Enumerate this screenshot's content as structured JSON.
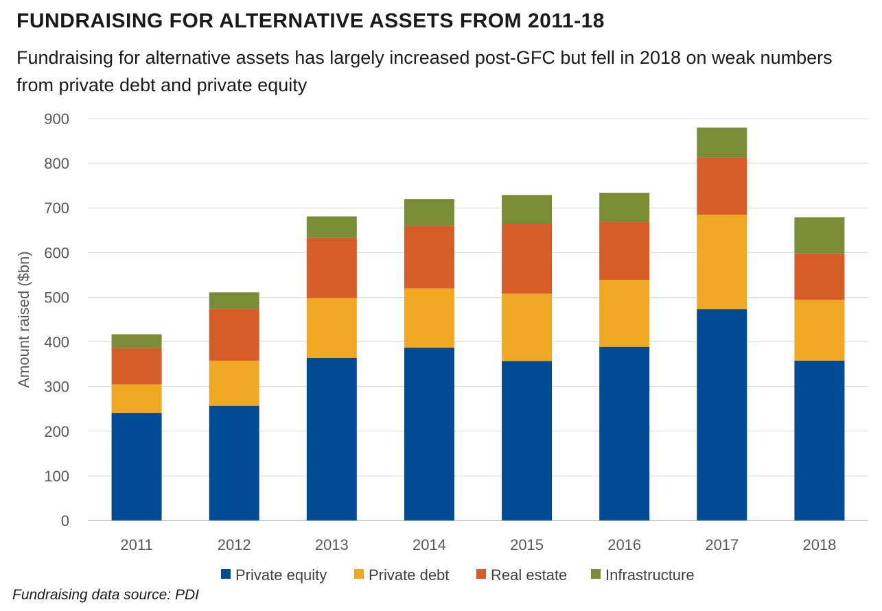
{
  "title": "FUNDRAISING FOR ALTERNATIVE ASSETS FROM 2011-18",
  "subtitle": "Fundraising for alternative assets has largely increased post-GFC but fell in 2018 on weak numbers from private debt and private equity",
  "source": "Fundraising data source: PDI",
  "chart_data": {
    "type": "bar",
    "stacked": true,
    "categories": [
      "2011",
      "2012",
      "2013",
      "2014",
      "2015",
      "2016",
      "2017",
      "2018"
    ],
    "series": [
      {
        "name": "Private equity",
        "color": "#004B93",
        "values": [
          241,
          257,
          364,
          387,
          357,
          389,
          473,
          358
        ]
      },
      {
        "name": "Private debt",
        "color": "#F0A823",
        "values": [
          64,
          101,
          134,
          133,
          151,
          150,
          212,
          136
        ]
      },
      {
        "name": "Real estate",
        "color": "#D65C28",
        "values": [
          81,
          116,
          135,
          140,
          157,
          130,
          128,
          104
        ]
      },
      {
        "name": "Infrastructure",
        "color": "#7A8C36",
        "values": [
          31,
          37,
          48,
          60,
          64,
          65,
          67,
          81
        ]
      }
    ],
    "ylabel": "Amount raised ($bn)",
    "xlabel": "",
    "ylim": [
      0,
      900
    ],
    "yticks": [
      "0",
      "100",
      "200",
      "300",
      "400",
      "500",
      "600",
      "700",
      "800",
      "900"
    ],
    "grid": true,
    "legend": "bottom"
  }
}
